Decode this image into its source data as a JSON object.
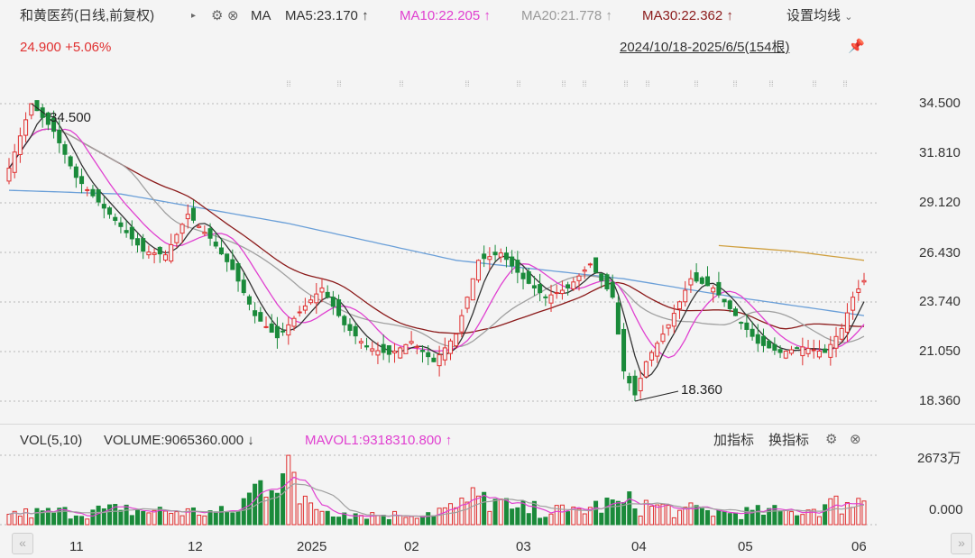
{
  "header": {
    "stock": "和黄医药",
    "mode": "(日线,前复权)",
    "indicator": "MA",
    "ma5": "MA5:23.170",
    "ma10": "MA10:22.205",
    "ma20": "MA20:21.778",
    "ma30": "MA30:22.362",
    "arrow": "↑",
    "settings": "设置均线",
    "price": "24.900",
    "change": "+5.06%",
    "range": "2024/10/18-2025/6/5(154根)",
    "colors": {
      "ma5": "#333333",
      "ma10": "#e040d0",
      "ma20": "#a0a0a0",
      "ma30": "#8b1a1a",
      "up": "#e03030",
      "down": "#1a8a3a"
    }
  },
  "volume_header": {
    "label": "VOL(5,10)",
    "volume": "VOLUME:9065360.000",
    "down_arrow": "↓",
    "mavol": "MAVOL1:9318310.800",
    "up_arrow": "↑",
    "add_indicator": "加指标",
    "switch_indicator": "换指标"
  },
  "chart_data": [
    {
      "type": "candlestick",
      "y_ticks": [
        "34.500",
        "31.810",
        "29.120",
        "26.430",
        "23.740",
        "21.050",
        "18.360"
      ],
      "ylim": [
        18.36,
        34.5
      ],
      "x_labels": [
        "11",
        "12",
        "2025",
        "02",
        "03",
        "04",
        "05",
        "06"
      ],
      "annotations": [
        {
          "label": "34.500",
          "value": 34.5,
          "index": 4
        },
        {
          "label": "18.360",
          "value": 18.36,
          "index": 112
        }
      ],
      "anchors": [
        [
          0,
          31.0
        ],
        [
          4,
          34.5
        ],
        [
          8,
          33.0
        ],
        [
          12,
          30.5
        ],
        [
          18,
          28.5
        ],
        [
          24,
          26.5
        ],
        [
          28,
          26.3
        ],
        [
          32,
          28.5
        ],
        [
          36,
          27.2
        ],
        [
          40,
          25.5
        ],
        [
          44,
          23.0
        ],
        [
          48,
          21.8
        ],
        [
          52,
          23.2
        ],
        [
          56,
          24.5
        ],
        [
          60,
          22.5
        ],
        [
          64,
          21.3
        ],
        [
          68,
          20.9
        ],
        [
          72,
          21.6
        ],
        [
          76,
          20.5
        ],
        [
          80,
          22.0
        ],
        [
          84,
          26.0
        ],
        [
          88,
          26.4
        ],
        [
          92,
          25.0
        ],
        [
          96,
          24.0
        ],
        [
          100,
          24.5
        ],
        [
          104,
          25.8
        ],
        [
          108,
          24.0
        ],
        [
          110,
          20.0
        ],
        [
          112,
          18.7
        ],
        [
          114,
          20.5
        ],
        [
          118,
          22.5
        ],
        [
          122,
          25.0
        ],
        [
          126,
          24.5
        ],
        [
          130,
          23.0
        ],
        [
          134,
          21.5
        ],
        [
          138,
          21.0
        ],
        [
          142,
          21.3
        ],
        [
          146,
          21.0
        ],
        [
          149,
          22.3
        ],
        [
          151,
          24.0
        ],
        [
          153,
          24.9
        ]
      ],
      "ma_long_anchors": [
        [
          0,
          29.8
        ],
        [
          20,
          29.6
        ],
        [
          50,
          28.0
        ],
        [
          80,
          26.0
        ],
        [
          110,
          25.0
        ],
        [
          130,
          24.0
        ],
        [
          153,
          23.0
        ]
      ],
      "ma_top_anchors": [
        [
          127,
          26.8
        ],
        [
          140,
          26.5
        ],
        [
          153,
          26.0
        ]
      ],
      "ma_colors": {
        "long": "#6a9fd8",
        "top": "#d0a040"
      }
    },
    {
      "type": "bar",
      "y_ticks": [
        "2673万",
        "0.000"
      ],
      "ylim": [
        0,
        26730000
      ],
      "anchors": [
        [
          0,
          4.0
        ],
        [
          20,
          5.5
        ],
        [
          40,
          4.5
        ],
        [
          50,
          26.7
        ],
        [
          52,
          8.0
        ],
        [
          60,
          4.5
        ],
        [
          70,
          3.5
        ],
        [
          80,
          6.5
        ],
        [
          84,
          11.0
        ],
        [
          90,
          6.0
        ],
        [
          100,
          5.0
        ],
        [
          110,
          8.5
        ],
        [
          120,
          5.5
        ],
        [
          130,
          4.5
        ],
        [
          140,
          5.0
        ],
        [
          150,
          8.5
        ],
        [
          153,
          9.1
        ]
      ],
      "unit": "million shares"
    }
  ]
}
